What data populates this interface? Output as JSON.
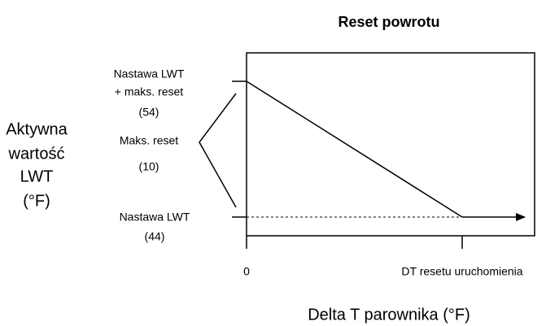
{
  "title": "Reset powrotu",
  "y_axis_label": [
    "Aktywna",
    "wartość",
    "LWT",
    "(°F)"
  ],
  "x_axis_label": "Delta T parownika (°F)",
  "x_ticks": [
    "0",
    "DT resetu uruchomienia"
  ],
  "upper_label": [
    "Nastawa LWT",
    "+ maks. reset",
    "(54)"
  ],
  "range_label": [
    "Maks. reset",
    "(10)"
  ],
  "lower_label": [
    "Nastawa LWT",
    "(44)"
  ]
}
